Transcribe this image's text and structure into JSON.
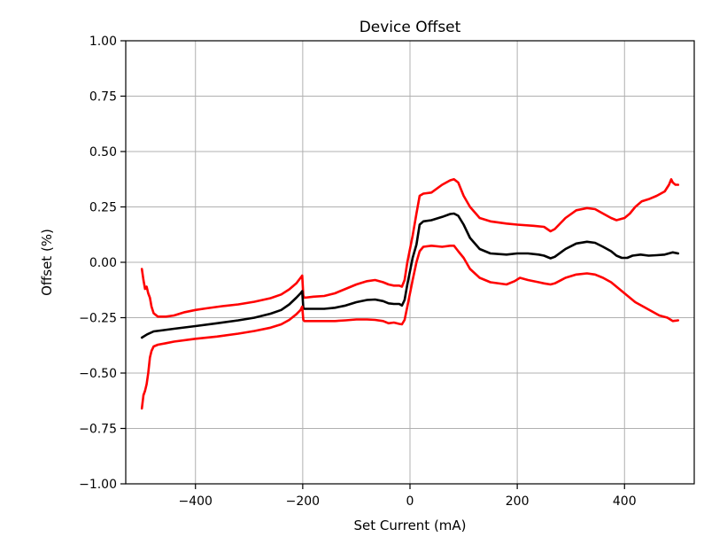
{
  "chart_data": {
    "type": "line",
    "title": "Device Offset",
    "xlabel": "Set Current (mA)",
    "ylabel": "Offset (%)",
    "xlim": [
      -530,
      530
    ],
    "ylim": [
      -1.0,
      1.0
    ],
    "xticks": [
      -400,
      -200,
      0,
      200,
      400
    ],
    "xtick_labels": [
      "−400",
      "−200",
      "0",
      "200",
      "400"
    ],
    "yticks": [
      1.0,
      0.75,
      0.5,
      0.25,
      0.0,
      -0.25,
      -0.5,
      -0.75,
      -1.0
    ],
    "ytick_labels": [
      "1.00",
      "0.75",
      "0.50",
      "0.25",
      "0.00",
      "−0.25",
      "−0.50",
      "−0.75",
      "−1.00"
    ],
    "grid": true,
    "series": [
      {
        "color": "#ff0000",
        "points": [
          [
            -500,
            -0.03
          ],
          [
            -497,
            -0.08
          ],
          [
            -494,
            -0.12
          ],
          [
            -491,
            -0.11
          ],
          [
            -488,
            -0.14
          ],
          [
            -485,
            -0.16
          ],
          [
            -482,
            -0.2
          ],
          [
            -478,
            -0.23
          ],
          [
            -470,
            -0.245
          ],
          [
            -455,
            -0.245
          ],
          [
            -440,
            -0.24
          ],
          [
            -420,
            -0.225
          ],
          [
            -400,
            -0.215
          ],
          [
            -380,
            -0.208
          ],
          [
            -350,
            -0.198
          ],
          [
            -320,
            -0.19
          ],
          [
            -290,
            -0.178
          ],
          [
            -260,
            -0.162
          ],
          [
            -240,
            -0.145
          ],
          [
            -225,
            -0.122
          ],
          [
            -212,
            -0.095
          ],
          [
            -204,
            -0.07
          ],
          [
            -201,
            -0.06
          ],
          [
            -199,
            -0.15
          ],
          [
            -197,
            -0.16
          ],
          [
            -180,
            -0.155
          ],
          [
            -160,
            -0.152
          ],
          [
            -140,
            -0.14
          ],
          [
            -120,
            -0.12
          ],
          [
            -100,
            -0.1
          ],
          [
            -80,
            -0.085
          ],
          [
            -65,
            -0.08
          ],
          [
            -50,
            -0.09
          ],
          [
            -40,
            -0.1
          ],
          [
            -30,
            -0.105
          ],
          [
            -20,
            -0.105
          ],
          [
            -15,
            -0.11
          ],
          [
            -10,
            -0.08
          ],
          [
            -5,
            0.0
          ],
          [
            5,
            0.12
          ],
          [
            12,
            0.22
          ],
          [
            18,
            0.3
          ],
          [
            25,
            0.31
          ],
          [
            40,
            0.315
          ],
          [
            60,
            0.35
          ],
          [
            75,
            0.37
          ],
          [
            82,
            0.375
          ],
          [
            90,
            0.36
          ],
          [
            100,
            0.3
          ],
          [
            112,
            0.25
          ],
          [
            130,
            0.2
          ],
          [
            150,
            0.185
          ],
          [
            180,
            0.175
          ],
          [
            200,
            0.17
          ],
          [
            230,
            0.165
          ],
          [
            250,
            0.16
          ],
          [
            262,
            0.14
          ],
          [
            270,
            0.15
          ],
          [
            290,
            0.2
          ],
          [
            310,
            0.235
          ],
          [
            330,
            0.245
          ],
          [
            345,
            0.24
          ],
          [
            360,
            0.22
          ],
          [
            375,
            0.2
          ],
          [
            385,
            0.19
          ],
          [
            400,
            0.2
          ],
          [
            410,
            0.22
          ],
          [
            420,
            0.25
          ],
          [
            432,
            0.275
          ],
          [
            445,
            0.285
          ],
          [
            460,
            0.3
          ],
          [
            475,
            0.32
          ],
          [
            483,
            0.35
          ],
          [
            487,
            0.375
          ],
          [
            490,
            0.36
          ],
          [
            495,
            0.35
          ],
          [
            500,
            0.35
          ]
        ]
      },
      {
        "color": "#000000",
        "points": [
          [
            -500,
            -0.34
          ],
          [
            -490,
            -0.325
          ],
          [
            -478,
            -0.312
          ],
          [
            -465,
            -0.308
          ],
          [
            -440,
            -0.3
          ],
          [
            -400,
            -0.288
          ],
          [
            -360,
            -0.275
          ],
          [
            -320,
            -0.262
          ],
          [
            -290,
            -0.25
          ],
          [
            -260,
            -0.232
          ],
          [
            -240,
            -0.215
          ],
          [
            -225,
            -0.19
          ],
          [
            -212,
            -0.16
          ],
          [
            -204,
            -0.14
          ],
          [
            -201,
            -0.13
          ],
          [
            -199,
            -0.205
          ],
          [
            -197,
            -0.21
          ],
          [
            -180,
            -0.21
          ],
          [
            -160,
            -0.21
          ],
          [
            -140,
            -0.205
          ],
          [
            -120,
            -0.195
          ],
          [
            -100,
            -0.18
          ],
          [
            -80,
            -0.17
          ],
          [
            -65,
            -0.168
          ],
          [
            -50,
            -0.175
          ],
          [
            -40,
            -0.185
          ],
          [
            -30,
            -0.188
          ],
          [
            -20,
            -0.188
          ],
          [
            -15,
            -0.195
          ],
          [
            -10,
            -0.17
          ],
          [
            -5,
            -0.1
          ],
          [
            5,
            0.02
          ],
          [
            12,
            0.08
          ],
          [
            18,
            0.17
          ],
          [
            25,
            0.185
          ],
          [
            40,
            0.19
          ],
          [
            60,
            0.205
          ],
          [
            75,
            0.218
          ],
          [
            82,
            0.22
          ],
          [
            90,
            0.21
          ],
          [
            100,
            0.17
          ],
          [
            112,
            0.11
          ],
          [
            130,
            0.06
          ],
          [
            150,
            0.04
          ],
          [
            180,
            0.035
          ],
          [
            200,
            0.04
          ],
          [
            220,
            0.04
          ],
          [
            240,
            0.035
          ],
          [
            250,
            0.03
          ],
          [
            262,
            0.018
          ],
          [
            270,
            0.025
          ],
          [
            290,
            0.06
          ],
          [
            310,
            0.085
          ],
          [
            330,
            0.093
          ],
          [
            345,
            0.088
          ],
          [
            360,
            0.07
          ],
          [
            375,
            0.05
          ],
          [
            385,
            0.03
          ],
          [
            395,
            0.02
          ],
          [
            405,
            0.02
          ],
          [
            415,
            0.03
          ],
          [
            430,
            0.035
          ],
          [
            445,
            0.03
          ],
          [
            460,
            0.032
          ],
          [
            475,
            0.035
          ],
          [
            490,
            0.045
          ],
          [
            500,
            0.04
          ]
        ]
      },
      {
        "color": "#ff0000",
        "points": [
          [
            -500,
            -0.66
          ],
          [
            -497,
            -0.6
          ],
          [
            -494,
            -0.58
          ],
          [
            -491,
            -0.55
          ],
          [
            -488,
            -0.5
          ],
          [
            -485,
            -0.43
          ],
          [
            -482,
            -0.4
          ],
          [
            -478,
            -0.38
          ],
          [
            -470,
            -0.372
          ],
          [
            -455,
            -0.365
          ],
          [
            -440,
            -0.358
          ],
          [
            -400,
            -0.345
          ],
          [
            -360,
            -0.335
          ],
          [
            -320,
            -0.322
          ],
          [
            -290,
            -0.31
          ],
          [
            -260,
            -0.295
          ],
          [
            -240,
            -0.28
          ],
          [
            -225,
            -0.26
          ],
          [
            -212,
            -0.235
          ],
          [
            -204,
            -0.215
          ],
          [
            -201,
            -0.2
          ],
          [
            -199,
            -0.26
          ],
          [
            -197,
            -0.265
          ],
          [
            -180,
            -0.265
          ],
          [
            -160,
            -0.265
          ],
          [
            -140,
            -0.265
          ],
          [
            -120,
            -0.262
          ],
          [
            -100,
            -0.258
          ],
          [
            -80,
            -0.258
          ],
          [
            -65,
            -0.26
          ],
          [
            -50,
            -0.265
          ],
          [
            -40,
            -0.275
          ],
          [
            -30,
            -0.272
          ],
          [
            -20,
            -0.278
          ],
          [
            -15,
            -0.28
          ],
          [
            -10,
            -0.26
          ],
          [
            -5,
            -0.2
          ],
          [
            5,
            -0.08
          ],
          [
            12,
            0.0
          ],
          [
            18,
            0.05
          ],
          [
            25,
            0.07
          ],
          [
            40,
            0.075
          ],
          [
            60,
            0.07
          ],
          [
            75,
            0.075
          ],
          [
            82,
            0.075
          ],
          [
            90,
            0.05
          ],
          [
            100,
            0.02
          ],
          [
            112,
            -0.03
          ],
          [
            130,
            -0.07
          ],
          [
            150,
            -0.09
          ],
          [
            180,
            -0.1
          ],
          [
            195,
            -0.085
          ],
          [
            205,
            -0.07
          ],
          [
            220,
            -0.08
          ],
          [
            240,
            -0.09
          ],
          [
            250,
            -0.095
          ],
          [
            262,
            -0.1
          ],
          [
            270,
            -0.095
          ],
          [
            290,
            -0.07
          ],
          [
            310,
            -0.055
          ],
          [
            330,
            -0.05
          ],
          [
            345,
            -0.055
          ],
          [
            360,
            -0.07
          ],
          [
            375,
            -0.09
          ],
          [
            390,
            -0.12
          ],
          [
            405,
            -0.15
          ],
          [
            420,
            -0.18
          ],
          [
            435,
            -0.2
          ],
          [
            450,
            -0.22
          ],
          [
            465,
            -0.24
          ],
          [
            480,
            -0.25
          ],
          [
            490,
            -0.265
          ],
          [
            500,
            -0.262
          ]
        ]
      }
    ]
  }
}
